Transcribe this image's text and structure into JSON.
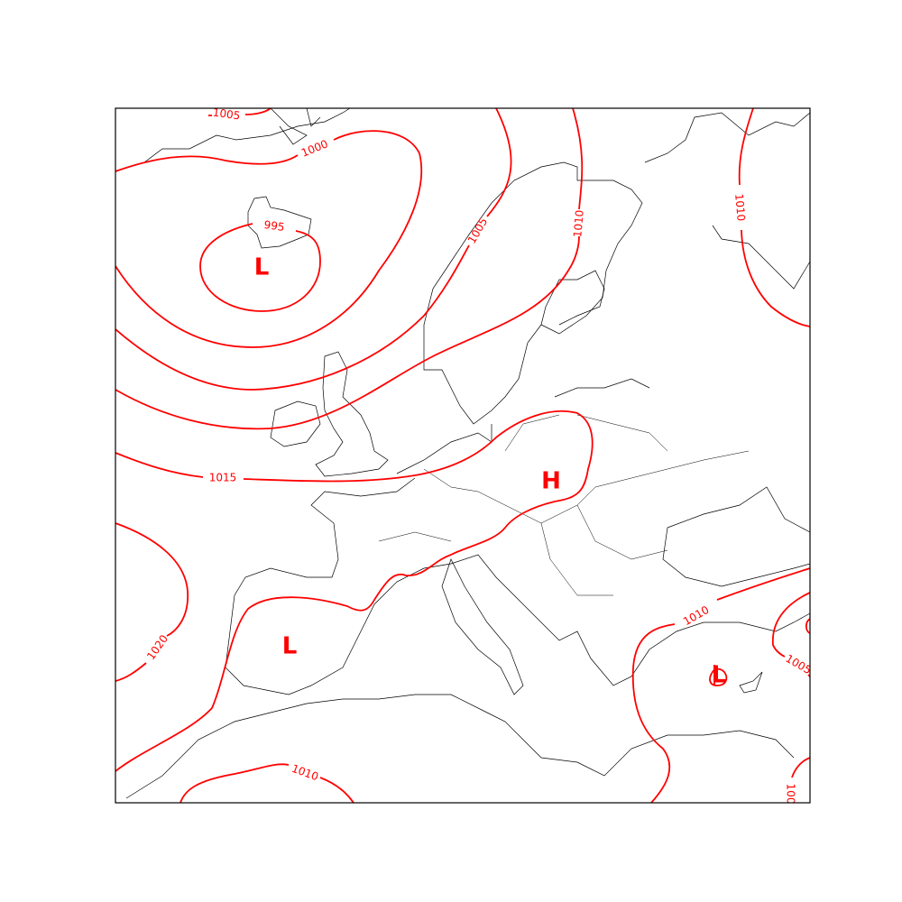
{
  "map": {
    "type": "surface pressure isobar map",
    "region": "Europe",
    "colors": {
      "isobars": "#ff0000",
      "coastlines": "#000000",
      "frame": "#000000"
    },
    "isobar_labels": [
      {
        "id": "l1005a",
        "text": "1005"
      },
      {
        "id": "l1000",
        "text": "1000"
      },
      {
        "id": "l995",
        "text": "995"
      },
      {
        "id": "l1005b",
        "text": "1005"
      },
      {
        "id": "l1010a",
        "text": "1010"
      },
      {
        "id": "l1010b",
        "text": "1010"
      },
      {
        "id": "l1015",
        "text": "1015"
      },
      {
        "id": "l1020",
        "text": "1020"
      },
      {
        "id": "l1010c",
        "text": "1010"
      },
      {
        "id": "l1010d",
        "text": "1010"
      },
      {
        "id": "l1005c",
        "text": "1005"
      },
      {
        "id": "l100x",
        "text": "100"
      }
    ],
    "pressure_centers": [
      {
        "id": "c1",
        "text": "L"
      },
      {
        "id": "c2",
        "text": "H"
      },
      {
        "id": "c3",
        "text": "L"
      },
      {
        "id": "c4",
        "text": "L"
      }
    ]
  }
}
